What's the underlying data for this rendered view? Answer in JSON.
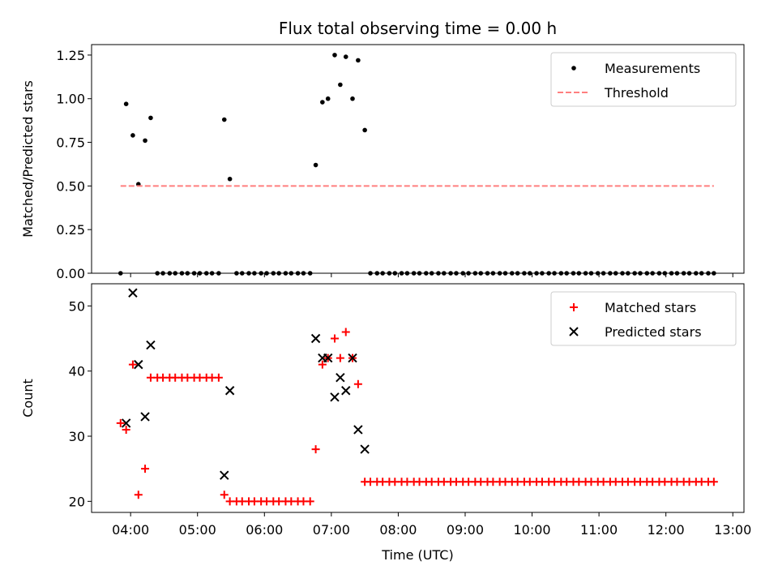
{
  "chart_data": [
    {
      "type": "scatter",
      "title": "Flux total observing time = 0.00 h",
      "xlabel": "",
      "ylabel": "Matched/Predicted stars",
      "ylim": [
        0,
        1.31
      ],
      "yticks": [
        "0.00",
        "0.25",
        "0.50",
        "0.75",
        "1.00",
        "1.25"
      ],
      "xlim": [
        "03:25",
        "13:10"
      ],
      "grid": false,
      "legend_position": "top-right",
      "series": [
        {
          "name": "Measurements",
          "color": "#000000",
          "marker": "dot",
          "points": [
            [
              "03:51",
              0.0
            ],
            [
              "03:56",
              0.97
            ],
            [
              "04:02",
              0.79
            ],
            [
              "04:07",
              0.51
            ],
            [
              "04:13",
              0.76
            ],
            [
              "04:18",
              0.89
            ],
            [
              "04:24",
              0.0
            ],
            [
              "04:29",
              0.0
            ],
            [
              "04:35",
              0.0
            ],
            [
              "04:40",
              0.0
            ],
            [
              "04:46",
              0.0
            ],
            [
              "04:51",
              0.0
            ],
            [
              "04:57",
              0.0
            ],
            [
              "05:02",
              0.0
            ],
            [
              "05:08",
              0.0
            ],
            [
              "05:13",
              0.0
            ],
            [
              "05:19",
              0.0
            ],
            [
              "05:24",
              0.88
            ],
            [
              "05:29",
              0.54
            ],
            [
              "05:35",
              0.0
            ],
            [
              "05:40",
              0.0
            ],
            [
              "05:46",
              0.0
            ],
            [
              "05:51",
              0.0
            ],
            [
              "05:57",
              0.0
            ],
            [
              "06:02",
              0.0
            ],
            [
              "06:08",
              0.0
            ],
            [
              "06:13",
              0.0
            ],
            [
              "06:19",
              0.0
            ],
            [
              "06:24",
              0.0
            ],
            [
              "06:30",
              0.0
            ],
            [
              "06:35",
              0.0
            ],
            [
              "06:41",
              0.0
            ],
            [
              "06:46",
              0.62
            ],
            [
              "06:52",
              0.98
            ],
            [
              "06:57",
              1.0
            ],
            [
              "07:03",
              1.25
            ],
            [
              "07:08",
              1.08
            ],
            [
              "07:13",
              1.24
            ],
            [
              "07:19",
              1.0
            ],
            [
              "07:24",
              1.22
            ],
            [
              "07:30",
              0.82
            ],
            [
              "07:35",
              0.0
            ],
            [
              "07:41",
              0.0
            ],
            [
              "07:46",
              0.0
            ],
            [
              "07:52",
              0.0
            ],
            [
              "07:57",
              0.0
            ],
            [
              "08:03",
              0.0
            ],
            [
              "08:08",
              0.0
            ],
            [
              "08:14",
              0.0
            ],
            [
              "08:19",
              0.0
            ],
            [
              "08:25",
              0.0
            ],
            [
              "08:30",
              0.0
            ],
            [
              "08:36",
              0.0
            ],
            [
              "08:41",
              0.0
            ],
            [
              "08:47",
              0.0
            ],
            [
              "08:52",
              0.0
            ],
            [
              "08:58",
              0.0
            ],
            [
              "09:03",
              0.0
            ],
            [
              "09:09",
              0.0
            ],
            [
              "09:14",
              0.0
            ],
            [
              "09:20",
              0.0
            ],
            [
              "09:25",
              0.0
            ],
            [
              "09:31",
              0.0
            ],
            [
              "09:36",
              0.0
            ],
            [
              "09:42",
              0.0
            ],
            [
              "09:47",
              0.0
            ],
            [
              "09:53",
              0.0
            ],
            [
              "09:58",
              0.0
            ],
            [
              "10:04",
              0.0
            ],
            [
              "10:09",
              0.0
            ],
            [
              "10:15",
              0.0
            ],
            [
              "10:20",
              0.0
            ],
            [
              "10:26",
              0.0
            ],
            [
              "10:31",
              0.0
            ],
            [
              "10:37",
              0.0
            ],
            [
              "10:42",
              0.0
            ],
            [
              "10:48",
              0.0
            ],
            [
              "10:53",
              0.0
            ],
            [
              "10:59",
              0.0
            ],
            [
              "11:04",
              0.0
            ],
            [
              "11:10",
              0.0
            ],
            [
              "11:15",
              0.0
            ],
            [
              "11:21",
              0.0
            ],
            [
              "11:26",
              0.0
            ],
            [
              "11:32",
              0.0
            ],
            [
              "11:37",
              0.0
            ],
            [
              "11:43",
              0.0
            ],
            [
              "11:48",
              0.0
            ],
            [
              "11:54",
              0.0
            ],
            [
              "11:59",
              0.0
            ],
            [
              "12:05",
              0.0
            ],
            [
              "12:10",
              0.0
            ],
            [
              "12:16",
              0.0
            ],
            [
              "12:21",
              0.0
            ],
            [
              "12:27",
              0.0
            ],
            [
              "12:32",
              0.0
            ],
            [
              "12:38",
              0.0
            ],
            [
              "12:43",
              0.0
            ]
          ]
        },
        {
          "name": "Threshold",
          "color": "#ff7f7f",
          "marker": "dashed-line",
          "points": [
            [
              "03:51",
              0.5
            ],
            [
              "12:43",
              0.5
            ]
          ]
        }
      ]
    },
    {
      "type": "scatter",
      "title": "",
      "xlabel": "Time (UTC)",
      "ylabel": "Count",
      "ylim": [
        18.3,
        53.4
      ],
      "yticks": [
        "20",
        "30",
        "40",
        "50"
      ],
      "xlim": [
        "03:25",
        "13:10"
      ],
      "xticks": [
        "04:00",
        "05:00",
        "06:00",
        "07:00",
        "08:00",
        "09:00",
        "10:00",
        "11:00",
        "12:00",
        "13:00"
      ],
      "grid": false,
      "legend_position": "top-right",
      "series": [
        {
          "name": "Matched stars",
          "color": "#ff0000",
          "marker": "plus",
          "points": [
            [
              "03:51",
              32
            ],
            [
              "03:56",
              31
            ],
            [
              "04:02",
              41
            ],
            [
              "04:07",
              21
            ],
            [
              "04:13",
              25
            ],
            [
              "04:18",
              39
            ],
            [
              "04:24",
              39
            ],
            [
              "04:29",
              39
            ],
            [
              "04:35",
              39
            ],
            [
              "04:40",
              39
            ],
            [
              "04:46",
              39
            ],
            [
              "04:51",
              39
            ],
            [
              "04:57",
              39
            ],
            [
              "05:02",
              39
            ],
            [
              "05:08",
              39
            ],
            [
              "05:13",
              39
            ],
            [
              "05:19",
              39
            ],
            [
              "05:24",
              21
            ],
            [
              "05:29",
              20
            ],
            [
              "05:35",
              20
            ],
            [
              "05:40",
              20
            ],
            [
              "05:46",
              20
            ],
            [
              "05:51",
              20
            ],
            [
              "05:57",
              20
            ],
            [
              "06:02",
              20
            ],
            [
              "06:08",
              20
            ],
            [
              "06:13",
              20
            ],
            [
              "06:19",
              20
            ],
            [
              "06:24",
              20
            ],
            [
              "06:30",
              20
            ],
            [
              "06:35",
              20
            ],
            [
              "06:41",
              20
            ],
            [
              "06:46",
              28
            ],
            [
              "06:52",
              41
            ],
            [
              "06:57",
              42
            ],
            [
              "07:03",
              45
            ],
            [
              "07:08",
              42
            ],
            [
              "07:13",
              46
            ],
            [
              "07:19",
              42
            ],
            [
              "07:24",
              38
            ],
            [
              "07:30",
              23
            ],
            [
              "07:35",
              23
            ],
            [
              "07:41",
              23
            ],
            [
              "07:46",
              23
            ],
            [
              "07:52",
              23
            ],
            [
              "07:57",
              23
            ],
            [
              "08:03",
              23
            ],
            [
              "08:08",
              23
            ],
            [
              "08:14",
              23
            ],
            [
              "08:19",
              23
            ],
            [
              "08:25",
              23
            ],
            [
              "08:30",
              23
            ],
            [
              "08:36",
              23
            ],
            [
              "08:41",
              23
            ],
            [
              "08:47",
              23
            ],
            [
              "08:52",
              23
            ],
            [
              "08:58",
              23
            ],
            [
              "09:03",
              23
            ],
            [
              "09:09",
              23
            ],
            [
              "09:14",
              23
            ],
            [
              "09:20",
              23
            ],
            [
              "09:25",
              23
            ],
            [
              "09:31",
              23
            ],
            [
              "09:36",
              23
            ],
            [
              "09:42",
              23
            ],
            [
              "09:47",
              23
            ],
            [
              "09:53",
              23
            ],
            [
              "09:58",
              23
            ],
            [
              "10:04",
              23
            ],
            [
              "10:09",
              23
            ],
            [
              "10:15",
              23
            ],
            [
              "10:20",
              23
            ],
            [
              "10:26",
              23
            ],
            [
              "10:31",
              23
            ],
            [
              "10:37",
              23
            ],
            [
              "10:42",
              23
            ],
            [
              "10:48",
              23
            ],
            [
              "10:53",
              23
            ],
            [
              "10:59",
              23
            ],
            [
              "11:04",
              23
            ],
            [
              "11:10",
              23
            ],
            [
              "11:15",
              23
            ],
            [
              "11:21",
              23
            ],
            [
              "11:26",
              23
            ],
            [
              "11:32",
              23
            ],
            [
              "11:37",
              23
            ],
            [
              "11:43",
              23
            ],
            [
              "11:48",
              23
            ],
            [
              "11:54",
              23
            ],
            [
              "11:59",
              23
            ],
            [
              "12:05",
              23
            ],
            [
              "12:10",
              23
            ],
            [
              "12:16",
              23
            ],
            [
              "12:21",
              23
            ],
            [
              "12:27",
              23
            ],
            [
              "12:32",
              23
            ],
            [
              "12:38",
              23
            ],
            [
              "12:43",
              23
            ]
          ]
        },
        {
          "name": "Predicted stars",
          "color": "#000000",
          "marker": "x",
          "points": [
            [
              "03:56",
              32
            ],
            [
              "04:02",
              52
            ],
            [
              "04:07",
              41
            ],
            [
              "04:13",
              33
            ],
            [
              "04:18",
              44
            ],
            [
              "05:24",
              24
            ],
            [
              "05:29",
              37
            ],
            [
              "06:46",
              45
            ],
            [
              "06:52",
              42
            ],
            [
              "06:57",
              42
            ],
            [
              "07:03",
              36
            ],
            [
              "07:08",
              39
            ],
            [
              "07:13",
              37
            ],
            [
              "07:19",
              42
            ],
            [
              "07:24",
              31
            ],
            [
              "07:30",
              28
            ]
          ]
        }
      ]
    }
  ]
}
